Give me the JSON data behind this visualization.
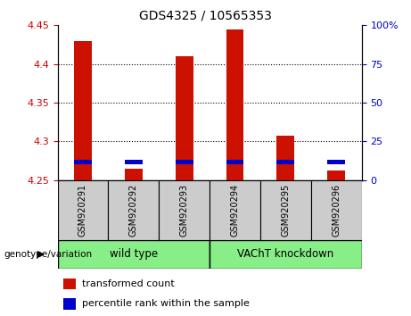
{
  "title": "GDS4325 / 10565353",
  "samples": [
    "GSM920291",
    "GSM920292",
    "GSM920293",
    "GSM920294",
    "GSM920295",
    "GSM920296"
  ],
  "red_tops": [
    4.43,
    4.265,
    4.41,
    4.445,
    4.307,
    4.263
  ],
  "blue_bottoms": [
    4.27,
    4.27,
    4.27,
    4.27,
    4.27,
    4.27
  ],
  "blue_tops": [
    4.276,
    4.276,
    4.276,
    4.276,
    4.276,
    4.276
  ],
  "ymin": 4.25,
  "ymax": 4.45,
  "yticks_left": [
    4.25,
    4.3,
    4.35,
    4.4,
    4.45
  ],
  "yticks_right": [
    0,
    25,
    50,
    75,
    100
  ],
  "bar_width": 0.35,
  "red_color": "#cc1100",
  "blue_color": "#0000cc",
  "wild_type_label": "wild type",
  "knockdown_label": "VAChT knockdown",
  "group_color": "#88ee88",
  "sample_area_color": "#cccccc",
  "legend_red": "transformed count",
  "legend_blue": "percentile rank within the sample",
  "genotype_label": "genotype/variation",
  "left_axis_color": "#cc0000",
  "right_axis_color": "#0000cc",
  "title_fontsize": 10,
  "tick_fontsize": 8,
  "grid_lines": [
    4.3,
    4.35,
    4.4
  ]
}
